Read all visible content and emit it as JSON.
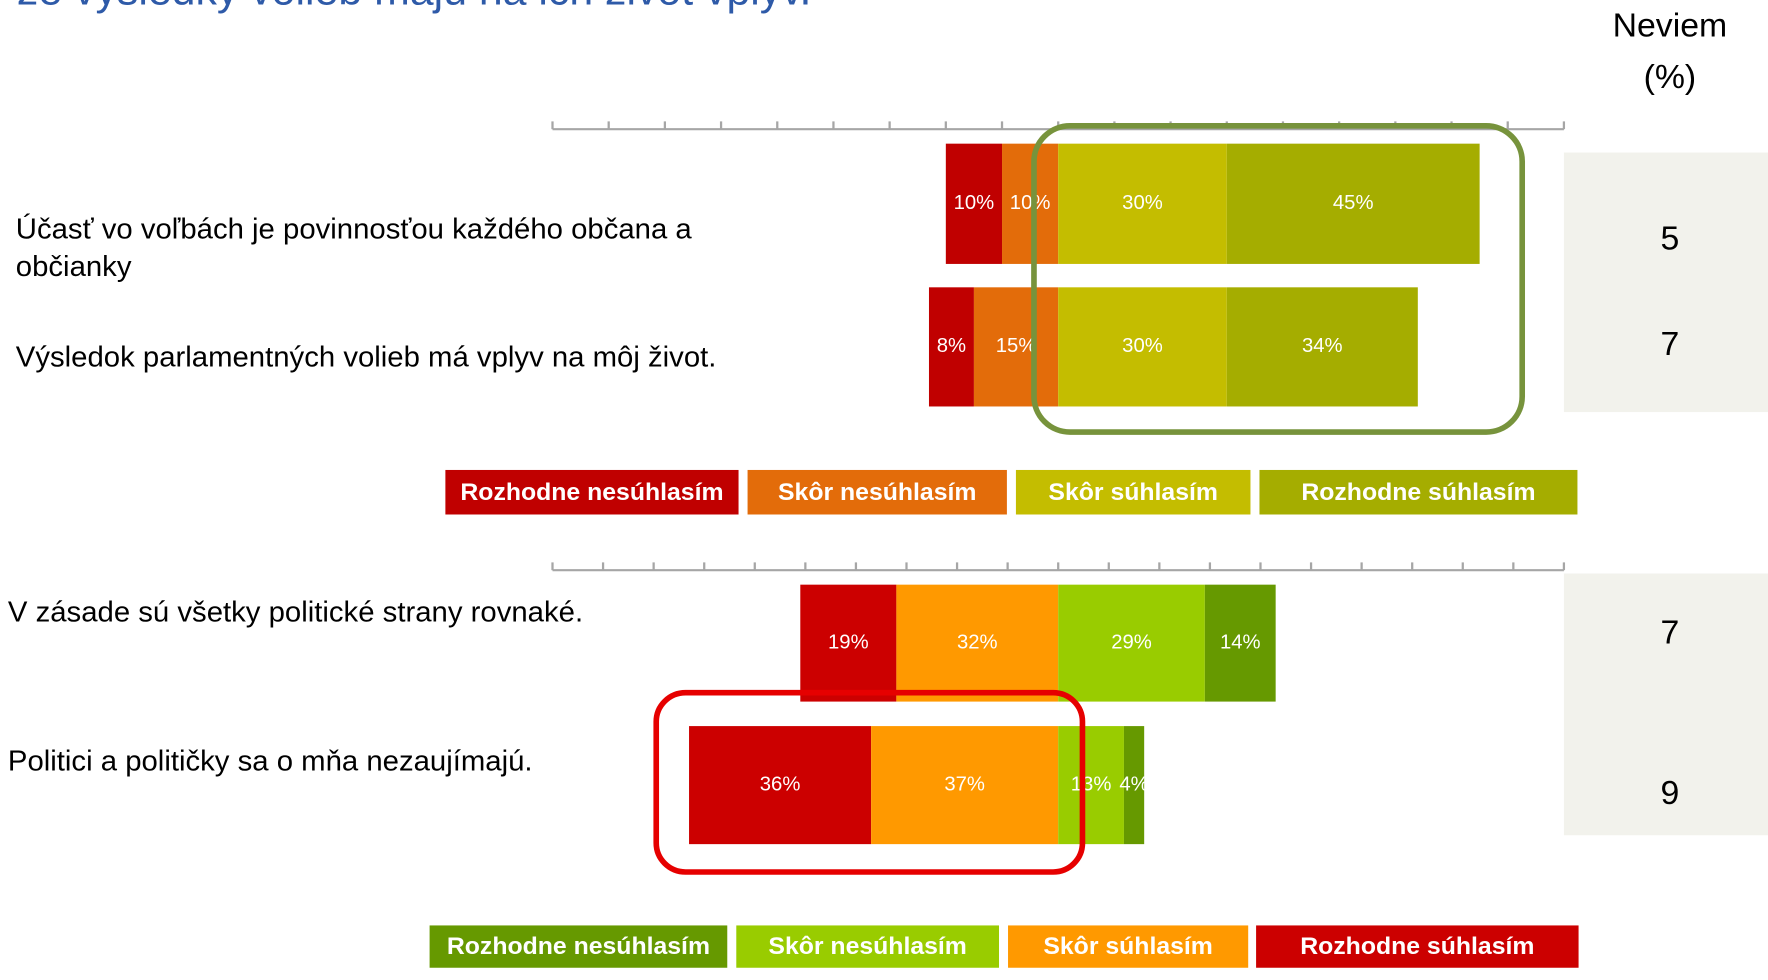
{
  "title": "že výsledky volieb majú na ich život vplyv.",
  "neviem_header": [
    "Neviem",
    "(%)"
  ],
  "chart_data": [
    {
      "type": "diverging-bar",
      "categories": [
        "Účasť vo voľbách je povinnosťou každého občana a občianky",
        "Výsledok parlamentných volieb má vplyv na môj život."
      ],
      "series": [
        {
          "name": "Rozhodne nesúhlasím",
          "color": "#c00000",
          "side": "left",
          "values": [
            10,
            8
          ],
          "value_labels": [
            "10%",
            "8%"
          ]
        },
        {
          "name": "Skôr nesúhlasím",
          "color": "#e36c0a",
          "side": "left",
          "values": [
            10,
            15
          ],
          "value_labels": [
            "10%",
            "15%"
          ]
        },
        {
          "name": "Skôr súhlasím",
          "color": "#c4bd00",
          "side": "right",
          "values": [
            30,
            30
          ],
          "value_labels": [
            "30%",
            "30%"
          ]
        },
        {
          "name": "Rozhodne súhlasím",
          "color": "#a5ad00",
          "side": "right",
          "values": [
            45,
            34
          ],
          "value_labels": [
            "45%",
            "34%"
          ]
        }
      ],
      "reverse": false,
      "xlim": [
        -90,
        90
      ],
      "xticks": [
        -90,
        -80,
        -70,
        -60,
        -50,
        -40,
        -30,
        -20,
        -10,
        0,
        10,
        20,
        30,
        40,
        50,
        60,
        70,
        80,
        90
      ],
      "neviem": [
        5,
        7
      ]
    },
    {
      "type": "diverging-bar",
      "categories": [
        "V zásade sú všetky politické strany rovnaké.",
        "Politici a političky sa o mňa nezaujímajú."
      ],
      "series": [
        {
          "name": "Rozhodne nesúhlasím",
          "color": "#669900",
          "side": "right",
          "values": [
            14,
            4
          ],
          "value_labels": [
            "14%",
            "4%"
          ]
        },
        {
          "name": "Skôr nesúhlasím",
          "color": "#99cc00",
          "side": "right",
          "values": [
            29,
            13
          ],
          "value_labels": [
            "29%",
            "13%"
          ]
        },
        {
          "name": "Skôr súhlasím",
          "color": "#ff9900",
          "side": "left",
          "values": [
            32,
            37
          ],
          "value_labels": [
            "32%",
            "37%"
          ]
        },
        {
          "name": "Rozhodne súhlasím",
          "color": "#cc0000",
          "side": "left",
          "values": [
            19,
            36
          ],
          "value_labels": [
            "19%",
            "36%"
          ]
        }
      ],
      "reverse": true,
      "xlim": [
        -100,
        100
      ],
      "xticks": [
        -100,
        -90,
        -80,
        -70,
        -60,
        -50,
        -40,
        -30,
        -20,
        -10,
        0,
        10,
        20,
        30,
        40,
        50,
        60,
        70,
        80,
        90,
        100
      ],
      "neviem": [
        7,
        9
      ]
    }
  ]
}
